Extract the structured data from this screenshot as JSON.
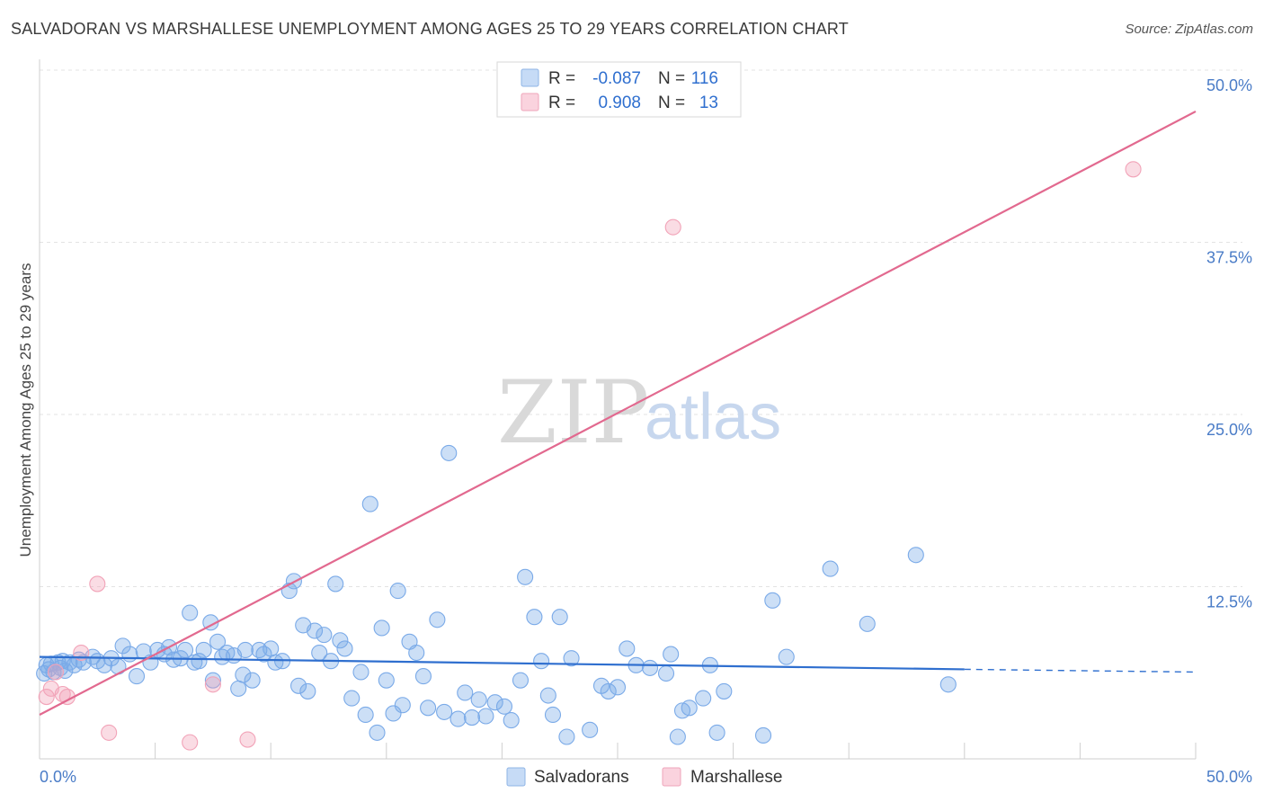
{
  "title": "SALVADORAN VS MARSHALLESE UNEMPLOYMENT AMONG AGES 25 TO 29 YEARS CORRELATION CHART",
  "source": "Source: ZipAtlas.com",
  "watermark": {
    "zip": "ZIP",
    "atlas": "atlas"
  },
  "legend_top": [
    {
      "r_label": "R =",
      "r_value": "-0.087",
      "n_label": "N =",
      "n_value": "116",
      "color": "#a9c8f0"
    },
    {
      "r_label": "R =",
      "r_value": "0.908",
      "n_label": "N =",
      "n_value": "13",
      "color": "#f5b8c9"
    }
  ],
  "legend_bottom": [
    {
      "label": "Salvadorans",
      "color": "#a9c8f0"
    },
    {
      "label": "Marshallese",
      "color": "#f5b8c9"
    }
  ],
  "chart_data": {
    "type": "scatter",
    "ylabel": "Unemployment Among Ages 25 to 29 years",
    "xlabel": "",
    "xlim": [
      0,
      50
    ],
    "ylim": [
      0,
      50
    ],
    "x_tick_labels": [
      "0.0%",
      "50.0%"
    ],
    "y_ticks": [
      12.5,
      25.0,
      37.5,
      50.0
    ],
    "y_tick_labels": [
      "12.5%",
      "25.0%",
      "37.5%",
      "50.0%"
    ],
    "grid": true,
    "series": [
      {
        "name": "Salvadorans",
        "color": "#7aaae8",
        "line_color": "#2f6fcf",
        "trend": {
          "x0": 0,
          "y0": 7.4,
          "x1": 40,
          "y1": 6.5,
          "dash_to": 50,
          "dash_y": 6.3
        },
        "points": [
          [
            0.2,
            6.2
          ],
          [
            0.3,
            6.8
          ],
          [
            0.4,
            6.5
          ],
          [
            0.5,
            6.9
          ],
          [
            0.6,
            6.3
          ],
          [
            0.8,
            7.0
          ],
          [
            0.9,
            6.6
          ],
          [
            1.0,
            7.1
          ],
          [
            1.1,
            6.4
          ],
          [
            1.3,
            7.0
          ],
          [
            1.5,
            6.8
          ],
          [
            1.7,
            7.2
          ],
          [
            1.9,
            7.0
          ],
          [
            2.3,
            7.4
          ],
          [
            2.5,
            7.1
          ],
          [
            2.8,
            6.8
          ],
          [
            3.1,
            7.3
          ],
          [
            3.4,
            6.7
          ],
          [
            3.6,
            8.2
          ],
          [
            3.9,
            7.6
          ],
          [
            4.2,
            6.0
          ],
          [
            4.5,
            7.8
          ],
          [
            4.8,
            7.0
          ],
          [
            5.1,
            7.9
          ],
          [
            5.4,
            7.6
          ],
          [
            5.6,
            8.1
          ],
          [
            5.8,
            7.2
          ],
          [
            6.1,
            7.3
          ],
          [
            6.3,
            7.9
          ],
          [
            6.5,
            10.6
          ],
          [
            6.7,
            7.0
          ],
          [
            6.9,
            7.1
          ],
          [
            7.1,
            7.9
          ],
          [
            7.4,
            9.9
          ],
          [
            7.5,
            5.7
          ],
          [
            7.7,
            8.5
          ],
          [
            7.9,
            7.4
          ],
          [
            8.1,
            7.7
          ],
          [
            8.4,
            7.5
          ],
          [
            8.6,
            5.1
          ],
          [
            8.8,
            6.1
          ],
          [
            8.9,
            7.9
          ],
          [
            9.2,
            5.7
          ],
          [
            9.5,
            7.9
          ],
          [
            9.7,
            7.6
          ],
          [
            10.0,
            8.0
          ],
          [
            10.2,
            7.0
          ],
          [
            10.5,
            7.1
          ],
          [
            10.8,
            12.2
          ],
          [
            11.0,
            12.9
          ],
          [
            11.2,
            5.3
          ],
          [
            11.4,
            9.7
          ],
          [
            11.6,
            4.9
          ],
          [
            11.9,
            9.3
          ],
          [
            12.1,
            7.7
          ],
          [
            12.3,
            9.0
          ],
          [
            12.6,
            7.1
          ],
          [
            12.8,
            12.7
          ],
          [
            13.0,
            8.6
          ],
          [
            13.2,
            8.0
          ],
          [
            13.5,
            4.4
          ],
          [
            13.9,
            6.3
          ],
          [
            14.1,
            3.2
          ],
          [
            14.3,
            18.5
          ],
          [
            14.6,
            1.9
          ],
          [
            14.8,
            9.5
          ],
          [
            15.0,
            5.7
          ],
          [
            15.3,
            3.3
          ],
          [
            15.5,
            12.2
          ],
          [
            15.7,
            3.9
          ],
          [
            16.0,
            8.5
          ],
          [
            16.3,
            7.7
          ],
          [
            16.6,
            6.0
          ],
          [
            16.8,
            3.7
          ],
          [
            17.2,
            10.1
          ],
          [
            17.5,
            3.4
          ],
          [
            17.7,
            22.2
          ],
          [
            18.1,
            2.9
          ],
          [
            18.4,
            4.8
          ],
          [
            18.7,
            3.0
          ],
          [
            19.0,
            4.3
          ],
          [
            19.3,
            3.1
          ],
          [
            19.7,
            4.1
          ],
          [
            20.1,
            3.8
          ],
          [
            20.4,
            2.8
          ],
          [
            20.8,
            5.7
          ],
          [
            21.0,
            13.2
          ],
          [
            21.4,
            10.3
          ],
          [
            21.7,
            7.1
          ],
          [
            22.0,
            4.6
          ],
          [
            22.2,
            3.2
          ],
          [
            22.5,
            10.3
          ],
          [
            22.8,
            1.6
          ],
          [
            23.0,
            7.3
          ],
          [
            23.8,
            2.1
          ],
          [
            24.3,
            5.3
          ],
          [
            24.6,
            4.9
          ],
          [
            25.0,
            5.2
          ],
          [
            25.4,
            8.0
          ],
          [
            25.8,
            6.8
          ],
          [
            26.4,
            6.6
          ],
          [
            27.1,
            6.2
          ],
          [
            27.3,
            7.6
          ],
          [
            27.8,
            3.5
          ],
          [
            28.1,
            3.7
          ],
          [
            28.7,
            4.4
          ],
          [
            29.0,
            6.8
          ],
          [
            29.3,
            1.9
          ],
          [
            29.6,
            4.9
          ],
          [
            31.3,
            1.7
          ],
          [
            31.7,
            11.5
          ],
          [
            32.3,
            7.4
          ],
          [
            34.2,
            13.8
          ],
          [
            35.8,
            9.8
          ],
          [
            37.9,
            14.8
          ],
          [
            39.3,
            5.4
          ],
          [
            27.6,
            1.6
          ]
        ]
      },
      {
        "name": "Marshallese",
        "color": "#f2a3b8",
        "line_color": "#e2698f",
        "trend": {
          "x0": 0,
          "y0": 3.2,
          "x1": 50,
          "y1": 47.0
        },
        "points": [
          [
            0.3,
            4.5
          ],
          [
            0.5,
            5.1
          ],
          [
            0.7,
            6.3
          ],
          [
            1.0,
            4.7
          ],
          [
            1.2,
            4.5
          ],
          [
            1.8,
            7.7
          ],
          [
            2.5,
            12.7
          ],
          [
            3.0,
            1.9
          ],
          [
            6.5,
            1.2
          ],
          [
            7.5,
            5.4
          ],
          [
            9.0,
            1.4
          ],
          [
            27.4,
            38.6
          ],
          [
            47.3,
            42.8
          ]
        ]
      }
    ]
  }
}
